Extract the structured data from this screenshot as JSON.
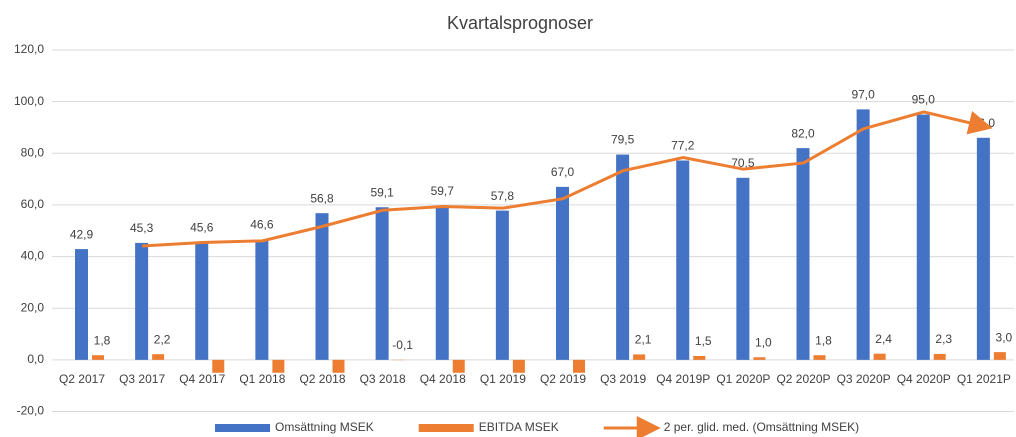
{
  "chart_data": {
    "type": "bar_line",
    "title": "Kvartalsprognoser",
    "categories": [
      "Q2 2017",
      "Q3 2017",
      "Q4 2017",
      "Q1 2018",
      "Q2 2018",
      "Q3 2018",
      "Q4 2018",
      "Q1 2019",
      "Q2 2019",
      "Q3 2019",
      "Q4 2019P",
      "Q1 2020P",
      "Q2 2020P",
      "Q3 2020P",
      "Q4 2020P",
      "Q1 2021P"
    ],
    "series": [
      {
        "name": "Omsättning MSEK",
        "color": "#4472c4",
        "kind": "bar",
        "values": [
          42.9,
          45.3,
          45.6,
          46.6,
          56.8,
          59.1,
          59.7,
          57.8,
          67.0,
          79.5,
          77.2,
          70.5,
          82.0,
          97.0,
          95.0,
          86.0
        ],
        "value_labels": [
          "42,9",
          "45,3",
          "45,6",
          "46,6",
          "56,8",
          "59,1",
          "59,7",
          "57,8",
          "67,0",
          "79,5",
          "77,2",
          "70,5",
          "82,0",
          "97,0",
          "95,0",
          "86,0"
        ]
      },
      {
        "name": "EBITDA MSEK",
        "color": "#ed7d31",
        "kind": "bar",
        "values": [
          1.8,
          2.2,
          -5,
          -5,
          -5,
          -0.1,
          -5,
          -5,
          -5,
          2.1,
          1.5,
          1.0,
          1.8,
          2.4,
          2.3,
          3.0
        ],
        "value_labels": [
          "1,8",
          "2,2",
          null,
          null,
          null,
          "-0,1",
          null,
          null,
          null,
          "2,1",
          "1,5",
          "1,0",
          "1,8",
          "2,4",
          "2,3",
          "3,0"
        ]
      },
      {
        "name": "2 per. glid. med. (Omsättning MSEK)",
        "color": "#ed7d31",
        "kind": "line",
        "values": [
          null,
          44.1,
          45.45,
          46.1,
          51.7,
          57.95,
          59.4,
          58.75,
          62.4,
          73.25,
          78.35,
          73.85,
          76.25,
          89.5,
          96.0,
          90.5
        ]
      }
    ],
    "ylim": [
      -20,
      120
    ],
    "yticks": [
      {
        "value": -20,
        "label": "-20,0"
      },
      {
        "value": 0,
        "label": "0,0"
      },
      {
        "value": 20,
        "label": "20,0"
      },
      {
        "value": 40,
        "label": "40,0"
      },
      {
        "value": 60,
        "label": "60,0"
      },
      {
        "value": 80,
        "label": "80,0"
      },
      {
        "value": 100,
        "label": "100,0"
      },
      {
        "value": 120,
        "label": "120,0"
      }
    ],
    "grid": true
  }
}
